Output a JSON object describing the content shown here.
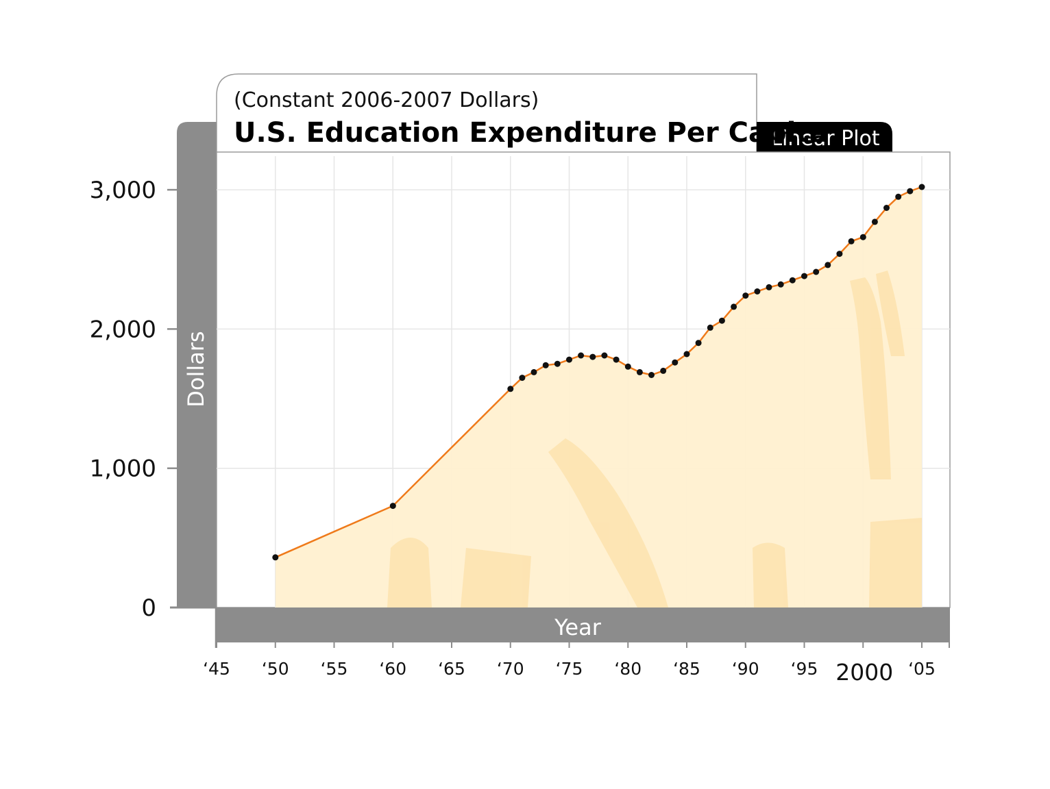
{
  "colors": {
    "line": "#ef7a1a",
    "area": "#fff0d0",
    "area_accent": "#fcd995",
    "marker": "#111111",
    "panel": "#8c8c8c",
    "grid": "#e6e6e6",
    "badge": "#000000"
  },
  "badge_label": "Linear Plot",
  "chart_data": {
    "type": "area",
    "subtitle": "(Constant 2006-2007 Dollars)",
    "title": "U.S. Education Expenditure Per Capita",
    "xlabel": "Year",
    "ylabel": "Dollars",
    "xlim": [
      1945,
      2008
    ],
    "ylim": [
      0,
      3300
    ],
    "grid": true,
    "x_ticks": [
      {
        "value": 1945,
        "label": "‘45"
      },
      {
        "value": 1950,
        "label": "‘50"
      },
      {
        "value": 1955,
        "label": "‘55"
      },
      {
        "value": 1960,
        "label": "‘60"
      },
      {
        "value": 1965,
        "label": "‘65"
      },
      {
        "value": 1970,
        "label": "‘70"
      },
      {
        "value": 1975,
        "label": "‘75"
      },
      {
        "value": 1980,
        "label": "‘80"
      },
      {
        "value": 1985,
        "label": "‘85"
      },
      {
        "value": 1990,
        "label": "‘90"
      },
      {
        "value": 1995,
        "label": "‘95"
      },
      {
        "value": 2000,
        "label": "2000"
      },
      {
        "value": 2005,
        "label": "‘05"
      }
    ],
    "y_ticks": [
      {
        "value": 0,
        "label": "0"
      },
      {
        "value": 1000,
        "label": "1,000"
      },
      {
        "value": 2000,
        "label": "2,000"
      },
      {
        "value": 3000,
        "label": "3,000"
      }
    ],
    "series": [
      {
        "x": [
          1950,
          1960,
          1970,
          1971,
          1972,
          1973,
          1974,
          1975,
          1976,
          1977,
          1978,
          1979,
          1980,
          1981,
          1982,
          1983,
          1984,
          1985,
          1986,
          1987,
          1988,
          1989,
          1990,
          1991,
          1992,
          1993,
          1994,
          1995,
          1996,
          1997,
          1998,
          1999,
          2000,
          2001,
          2002,
          2003,
          2004,
          2005
        ],
        "values": [
          360,
          730,
          1570,
          1650,
          1690,
          1740,
          1750,
          1780,
          1810,
          1800,
          1810,
          1780,
          1730,
          1690,
          1670,
          1700,
          1760,
          1820,
          1900,
          2010,
          2060,
          2160,
          2240,
          2270,
          2300,
          2320,
          2350,
          2380,
          2410,
          2460,
          2540,
          2630,
          2660,
          2770,
          2870,
          2950,
          2990,
          3020
        ]
      }
    ]
  }
}
